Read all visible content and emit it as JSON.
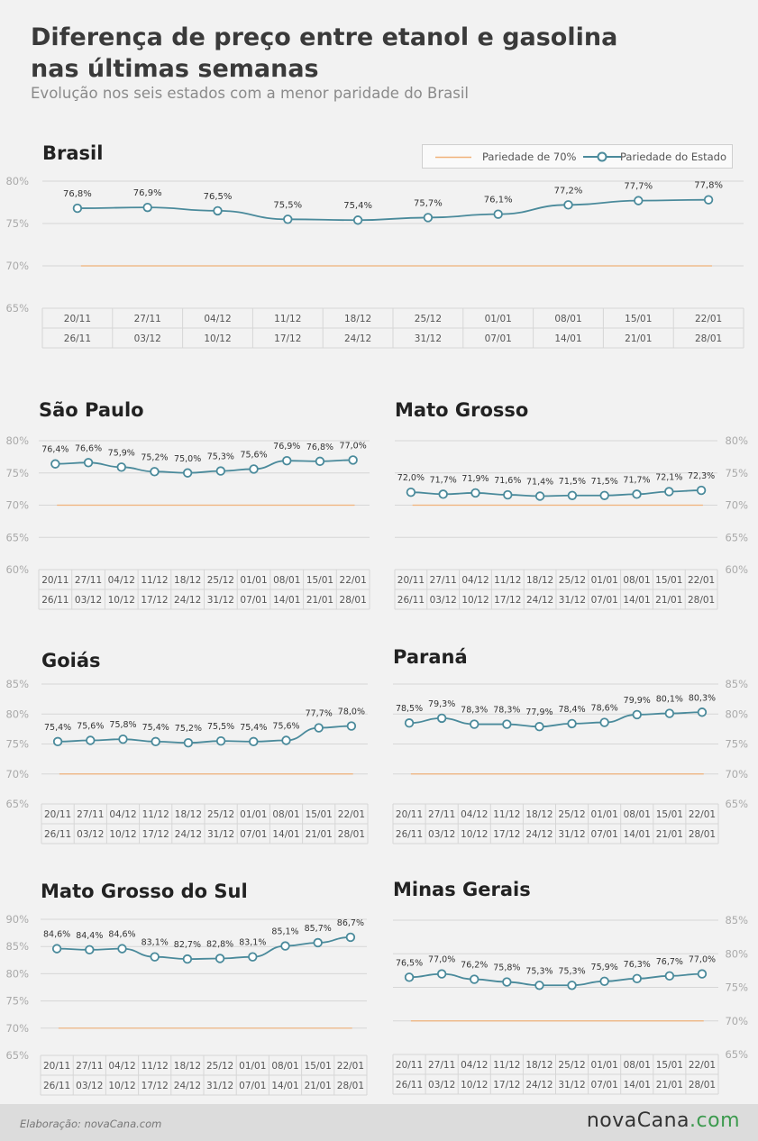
{
  "header": {
    "title_line1": "Diferença de preço entre etanol e gasolina",
    "title_line2": "nas últimas semanas",
    "subtitle": "Evolução nos seis estados com a menor paridade do Brasil"
  },
  "legend": {
    "item1": "Pariedade de 70%",
    "item2": "Pariedade do Estado"
  },
  "colors": {
    "series": "#4a8a9b",
    "reference": "#f0b27a",
    "grid": "#d6d6d6",
    "tick": "#aaaaaa"
  },
  "footer": {
    "credit": "Elaboração: novaCana.com",
    "logo_main": "novaCana",
    "logo_suffix": ".com"
  },
  "chart_data": [
    {
      "id": "brasil",
      "type": "line",
      "title": "Brasil",
      "yaxis_side": "left",
      "ylim": [
        65,
        80
      ],
      "yticks": [
        "65%",
        "70%",
        "75%",
        "80%"
      ],
      "reference_value": 70,
      "categories": [
        [
          "20/11",
          "26/11"
        ],
        [
          "27/11",
          "03/12"
        ],
        [
          "04/12",
          "10/12"
        ],
        [
          "11/12",
          "17/12"
        ],
        [
          "18/12",
          "24/12"
        ],
        [
          "25/12",
          "31/12"
        ],
        [
          "01/01",
          "07/01"
        ],
        [
          "08/01",
          "14/01"
        ],
        [
          "15/01",
          "21/01"
        ],
        [
          "22/01",
          "28/01"
        ]
      ],
      "values": [
        76.8,
        76.9,
        76.5,
        75.5,
        75.4,
        75.7,
        76.1,
        77.2,
        77.7,
        77.8
      ],
      "labels": [
        "76,8%",
        "76,9%",
        "76,5%",
        "75,5%",
        "75,4%",
        "75,7%",
        "76,1%",
        "77,2%",
        "77,7%",
        "77,8%"
      ]
    },
    {
      "id": "sao-paulo",
      "type": "line",
      "title": "São Paulo",
      "yaxis_side": "left",
      "ylim": [
        60,
        80
      ],
      "yticks": [
        "60%",
        "65%",
        "70%",
        "75%",
        "80%"
      ],
      "reference_value": 70,
      "categories": [
        [
          "20/11",
          "26/11"
        ],
        [
          "27/11",
          "03/12"
        ],
        [
          "04/12",
          "10/12"
        ],
        [
          "11/12",
          "17/12"
        ],
        [
          "18/12",
          "24/12"
        ],
        [
          "25/12",
          "31/12"
        ],
        [
          "01/01",
          "07/01"
        ],
        [
          "08/01",
          "14/01"
        ],
        [
          "15/01",
          "21/01"
        ],
        [
          "22/01",
          "28/01"
        ]
      ],
      "values": [
        76.4,
        76.6,
        75.9,
        75.2,
        75.0,
        75.3,
        75.6,
        76.9,
        76.8,
        77.0
      ],
      "labels": [
        "76,4%",
        "76,6%",
        "75,9%",
        "75,2%",
        "75,0%",
        "75,3%",
        "75,6%",
        "76,9%",
        "76,8%",
        "77,0%"
      ]
    },
    {
      "id": "mato-grosso",
      "type": "line",
      "title": "Mato Grosso",
      "yaxis_side": "right",
      "ylim": [
        60,
        80
      ],
      "yticks": [
        "60%",
        "65%",
        "70%",
        "75%",
        "80%"
      ],
      "reference_value": 70,
      "categories": [
        [
          "20/11",
          "26/11"
        ],
        [
          "27/11",
          "03/12"
        ],
        [
          "04/12",
          "10/12"
        ],
        [
          "11/12",
          "17/12"
        ],
        [
          "18/12",
          "24/12"
        ],
        [
          "25/12",
          "31/12"
        ],
        [
          "01/01",
          "07/01"
        ],
        [
          "08/01",
          "14/01"
        ],
        [
          "15/01",
          "21/01"
        ],
        [
          "22/01",
          "28/01"
        ]
      ],
      "values": [
        72.0,
        71.7,
        71.9,
        71.6,
        71.4,
        71.5,
        71.5,
        71.7,
        72.1,
        72.3
      ],
      "labels": [
        "72,0%",
        "71,7%",
        "71,9%",
        "71,6%",
        "71,4%",
        "71,5%",
        "71,5%",
        "71,7%",
        "72,1%",
        "72,3%"
      ]
    },
    {
      "id": "goias",
      "type": "line",
      "title": "Goiás",
      "yaxis_side": "left",
      "ylim": [
        65,
        85
      ],
      "yticks": [
        "65%",
        "70%",
        "75%",
        "80%",
        "85%"
      ],
      "reference_value": 70,
      "categories": [
        [
          "20/11",
          "26/11"
        ],
        [
          "27/11",
          "03/12"
        ],
        [
          "04/12",
          "10/12"
        ],
        [
          "11/12",
          "17/12"
        ],
        [
          "18/12",
          "24/12"
        ],
        [
          "25/12",
          "31/12"
        ],
        [
          "01/01",
          "07/01"
        ],
        [
          "08/01",
          "14/01"
        ],
        [
          "15/01",
          "21/01"
        ],
        [
          "22/01",
          "28/01"
        ]
      ],
      "values": [
        75.4,
        75.6,
        75.8,
        75.4,
        75.2,
        75.5,
        75.4,
        75.6,
        77.7,
        78.0
      ],
      "labels": [
        "75,4%",
        "75,6%",
        "75,8%",
        "75,4%",
        "75,2%",
        "75,5%",
        "75,4%",
        "75,6%",
        "77,7%",
        "78,0%"
      ]
    },
    {
      "id": "parana",
      "type": "line",
      "title": "Paraná",
      "yaxis_side": "right",
      "ylim": [
        65,
        85
      ],
      "yticks": [
        "65%",
        "70%",
        "75%",
        "80%",
        "85%"
      ],
      "reference_value": 70,
      "categories": [
        [
          "20/11",
          "26/11"
        ],
        [
          "27/11",
          "03/12"
        ],
        [
          "04/12",
          "10/12"
        ],
        [
          "11/12",
          "17/12"
        ],
        [
          "18/12",
          "24/12"
        ],
        [
          "25/12",
          "31/12"
        ],
        [
          "01/01",
          "07/01"
        ],
        [
          "08/01",
          "14/01"
        ],
        [
          "15/01",
          "21/01"
        ],
        [
          "22/01",
          "28/01"
        ]
      ],
      "values": [
        78.5,
        79.3,
        78.3,
        78.3,
        77.9,
        78.4,
        78.6,
        79.9,
        80.1,
        80.3
      ],
      "labels": [
        "78,5%",
        "79,3%",
        "78,3%",
        "78,3%",
        "77,9%",
        "78,4%",
        "78,6%",
        "79,9%",
        "80,1%",
        "80,3%"
      ]
    },
    {
      "id": "mato-grosso-do-sul",
      "type": "line",
      "title": "Mato Grosso do Sul",
      "yaxis_side": "left",
      "ylim": [
        65,
        90
      ],
      "yticks": [
        "65%",
        "70%",
        "75%",
        "80%",
        "85%",
        "90%"
      ],
      "reference_value": 70,
      "categories": [
        [
          "20/11",
          "26/11"
        ],
        [
          "27/11",
          "03/12"
        ],
        [
          "04/12",
          "10/12"
        ],
        [
          "11/12",
          "17/12"
        ],
        [
          "18/12",
          "24/12"
        ],
        [
          "25/12",
          "31/12"
        ],
        [
          "01/01",
          "07/01"
        ],
        [
          "08/01",
          "14/01"
        ],
        [
          "15/01",
          "21/01"
        ],
        [
          "22/01",
          "28/01"
        ]
      ],
      "values": [
        84.6,
        84.4,
        84.6,
        83.1,
        82.7,
        82.8,
        83.1,
        85.1,
        85.7,
        86.7
      ],
      "labels": [
        "84,6%",
        "84,4%",
        "84,6%",
        "83,1%",
        "82,7%",
        "82,8%",
        "83,1%",
        "85,1%",
        "85,7%",
        "86,7%"
      ]
    },
    {
      "id": "minas-gerais",
      "type": "line",
      "title": "Minas Gerais",
      "yaxis_side": "right",
      "ylim": [
        65,
        85
      ],
      "yticks": [
        "65%",
        "70%",
        "75%",
        "80%",
        "85%"
      ],
      "reference_value": 70,
      "categories": [
        [
          "20/11",
          "26/11"
        ],
        [
          "27/11",
          "03/12"
        ],
        [
          "04/12",
          "10/12"
        ],
        [
          "11/12",
          "17/12"
        ],
        [
          "18/12",
          "24/12"
        ],
        [
          "25/12",
          "31/12"
        ],
        [
          "01/01",
          "07/01"
        ],
        [
          "08/01",
          "14/01"
        ],
        [
          "15/01",
          "21/01"
        ],
        [
          "22/01",
          "28/01"
        ]
      ],
      "values": [
        76.5,
        77.0,
        76.2,
        75.8,
        75.3,
        75.3,
        75.9,
        76.3,
        76.7,
        77.0
      ],
      "labels": [
        "76,5%",
        "77,0%",
        "76,2%",
        "75,8%",
        "75,3%",
        "75,3%",
        "75,9%",
        "76,3%",
        "76,7%",
        "77,0%"
      ]
    }
  ]
}
